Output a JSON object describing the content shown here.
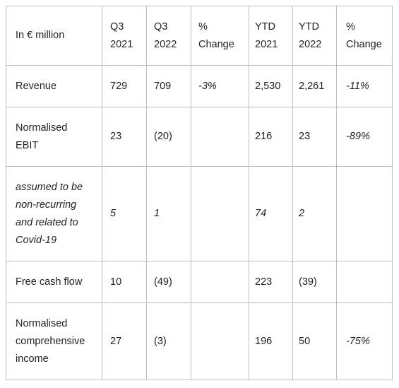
{
  "table": {
    "header": {
      "label": "In € million",
      "columns": [
        [
          "Q3",
          "2021"
        ],
        [
          "Q3",
          "2022"
        ],
        [
          "%",
          "Change"
        ],
        [
          "YTD",
          "2021"
        ],
        [
          "YTD",
          "2022"
        ],
        [
          "%",
          "Change"
        ]
      ]
    },
    "rows": [
      {
        "label_lines": [
          "Revenue"
        ],
        "italic": false,
        "cells": [
          "729",
          "709",
          "-3%",
          "2,530",
          "2,261",
          "-11%"
        ],
        "change_italic": [
          true,
          true
        ]
      },
      {
        "label_lines": [
          "Normalised",
          "EBIT"
        ],
        "italic": false,
        "cells": [
          "23",
          "(20)",
          "",
          "216",
          "23",
          "-89%"
        ],
        "change_italic": [
          true,
          true
        ]
      },
      {
        "label_lines": [
          "assumed to be",
          "non-recurring",
          "and related to",
          "Covid-19"
        ],
        "italic": true,
        "cells": [
          "5",
          "1",
          "",
          "74",
          "2",
          ""
        ],
        "change_italic": [
          true,
          true
        ]
      },
      {
        "label_lines": [
          "Free cash flow"
        ],
        "italic": false,
        "cells": [
          "10",
          "(49)",
          "",
          "223",
          "(39)",
          ""
        ],
        "change_italic": [
          true,
          true
        ]
      },
      {
        "label_lines": [
          "Normalised",
          "comprehensive",
          "income"
        ],
        "italic": false,
        "cells": [
          "27",
          "(3)",
          "",
          "196",
          "50",
          "-75%"
        ],
        "change_italic": [
          true,
          true
        ]
      }
    ]
  }
}
